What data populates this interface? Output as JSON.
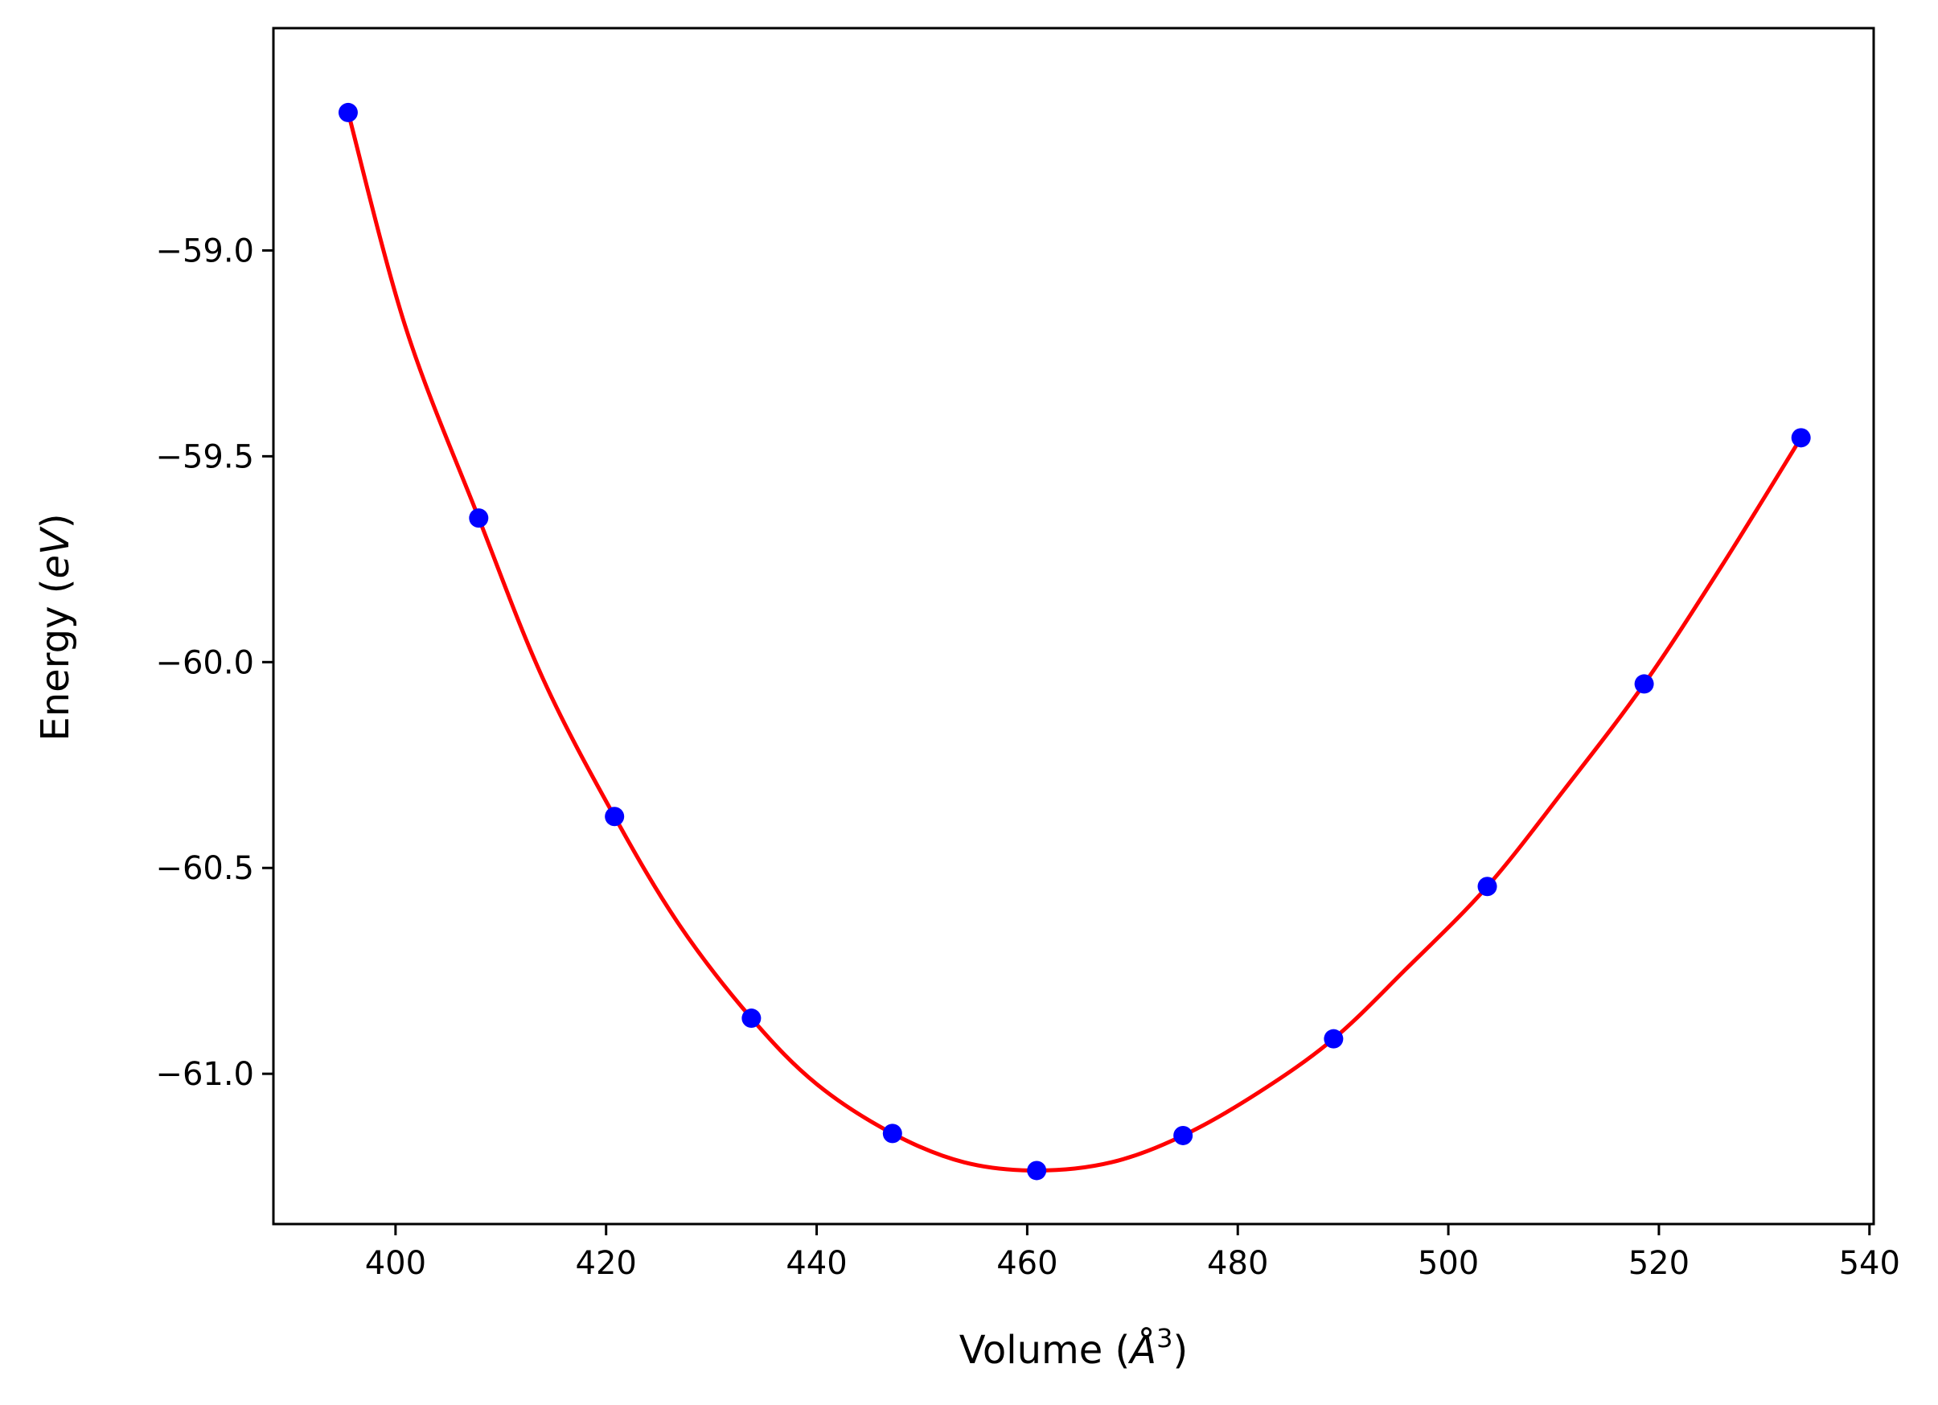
{
  "chart_data": {
    "type": "line",
    "title": "",
    "xlabel": "Volume",
    "xlabel_unit": "Å",
    "xlabel_unit_sup": "3",
    "ylabel": "Energy",
    "ylabel_unit": "eV",
    "xlim": [
      388.4,
      540.4
    ],
    "ylim": [
      -61.365,
      -58.46
    ],
    "x_ticks": [
      400,
      420,
      440,
      460,
      480,
      500,
      520,
      540
    ],
    "x_tick_labels": [
      "400",
      "420",
      "440",
      "460",
      "480",
      "500",
      "520",
      "540"
    ],
    "y_ticks": [
      -59.0,
      -59.5,
      -60.0,
      -60.5,
      -61.0
    ],
    "y_tick_labels": [
      "−59.0",
      "−59.5",
      "−60.0",
      "−60.5",
      "−61.0"
    ],
    "grid": false,
    "legend": "none",
    "series": [
      {
        "kind": "points",
        "color": "#0000ff",
        "x": [
          395.5,
          407.9,
          420.8,
          433.8,
          447.2,
          460.9,
          474.8,
          489.1,
          503.7,
          518.6,
          533.5
        ],
        "y": [
          -58.665,
          -59.65,
          -60.375,
          -60.865,
          -61.145,
          -61.235,
          -61.15,
          -60.915,
          -60.545,
          -60.053,
          -59.455
        ]
      },
      {
        "kind": "fit-curve",
        "color": "#ff0000",
        "x": [
          395.5,
          401.0,
          407.9,
          414.0,
          420.8,
          427.0,
          433.8,
          440.0,
          447.2,
          454.0,
          460.9,
          468.0,
          474.8,
          482.0,
          489.1,
          496.0,
          503.7,
          511.0,
          518.6,
          526.0,
          533.5
        ],
        "y": [
          -58.665,
          -59.19,
          -59.65,
          -60.04,
          -60.375,
          -60.64,
          -60.865,
          -61.025,
          -61.145,
          -61.215,
          -61.235,
          -61.215,
          -61.15,
          -61.045,
          -60.915,
          -60.745,
          -60.545,
          -60.31,
          -60.053,
          -59.765,
          -59.455
        ]
      }
    ]
  }
}
